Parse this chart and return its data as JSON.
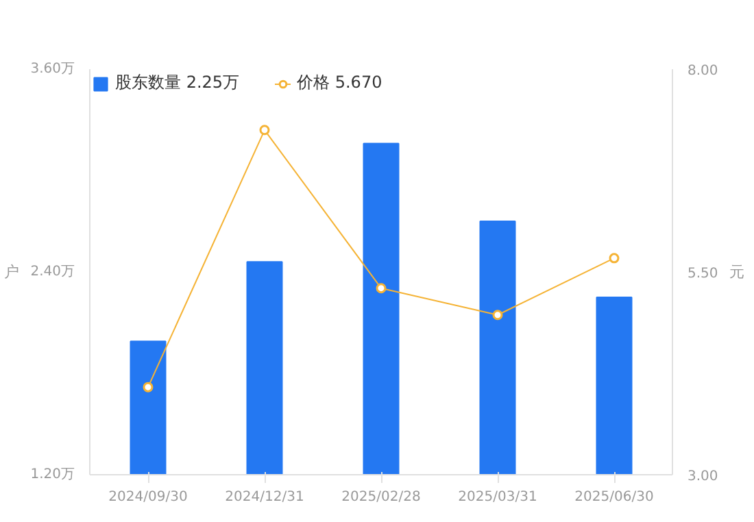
{
  "chart_data": {
    "type": "bar",
    "categories": [
      "2024/09/30",
      "2024/12/31",
      "2025/02/28",
      "2025/03/31",
      "2025/06/30"
    ],
    "series": [
      {
        "name": "股东数量 2.25万",
        "color": "#2478f2",
        "values": [
          1.99,
          2.46,
          3.16,
          2.7,
          2.25
        ]
      },
      {
        "name": "价格 5.670",
        "type": "line",
        "axis": "y2",
        "color": "#f5b335",
        "values": [
          4.08,
          7.25,
          5.3,
          4.97,
          5.67
        ]
      }
    ],
    "ylabel": "户",
    "y2label": "元",
    "ylim": [
      1.2,
      3.6
    ],
    "yticks": [
      {
        "value": 1.2,
        "label": "1.20万"
      },
      {
        "value": 2.4,
        "label": "2.40万"
      },
      {
        "value": 3.6,
        "label": "3.60万"
      }
    ],
    "y2lim": [
      3,
      8
    ],
    "y2ticks": [
      {
        "value": 3,
        "label": "3.00"
      },
      {
        "value": 5.5,
        "label": "5.50"
      },
      {
        "value": 8,
        "label": "8.00"
      }
    ],
    "grid": false,
    "legend": "top left",
    "marker": "circle"
  }
}
